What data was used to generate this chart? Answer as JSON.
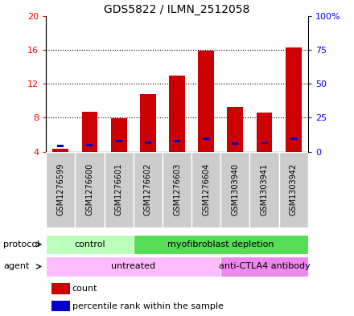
{
  "title": "GDS5822 / ILMN_2512058",
  "samples": [
    "GSM1276599",
    "GSM1276600",
    "GSM1276601",
    "GSM1276602",
    "GSM1276603",
    "GSM1276604",
    "GSM1303940",
    "GSM1303941",
    "GSM1303942"
  ],
  "counts": [
    4.3,
    8.7,
    7.9,
    10.8,
    13.0,
    15.9,
    9.3,
    8.6,
    16.3
  ],
  "percentile_ranks": [
    4.5,
    4.6,
    7.9,
    6.8,
    7.9,
    9.3,
    5.8,
    6.3,
    9.3
  ],
  "bar_bottom": 4.0,
  "ylim_left": [
    4,
    20
  ],
  "ylim_right": [
    0,
    100
  ],
  "yticks_left": [
    4,
    8,
    12,
    16,
    20
  ],
  "yticks_right": [
    0,
    25,
    50,
    75,
    100
  ],
  "ytick_labels_left": [
    "4",
    "8",
    "12",
    "16",
    "20"
  ],
  "ytick_labels_right": [
    "0",
    "25",
    "50",
    "75",
    "100%"
  ],
  "bar_color": "#cc0000",
  "percentile_color": "#0000cc",
  "protocol_groups": [
    {
      "label": "control",
      "start": 0,
      "end": 3,
      "color": "#bbffbb"
    },
    {
      "label": "myofibroblast depletion",
      "start": 3,
      "end": 9,
      "color": "#55dd55"
    }
  ],
  "agent_groups": [
    {
      "label": "untreated",
      "start": 0,
      "end": 6,
      "color": "#ffbbff"
    },
    {
      "label": "anti-CTLA4 antibody",
      "start": 6,
      "end": 9,
      "color": "#ee88ee"
    }
  ],
  "legend_count_label": "count",
  "legend_percentile_label": "percentile rank within the sample",
  "protocol_label": "protocol",
  "agent_label": "agent"
}
